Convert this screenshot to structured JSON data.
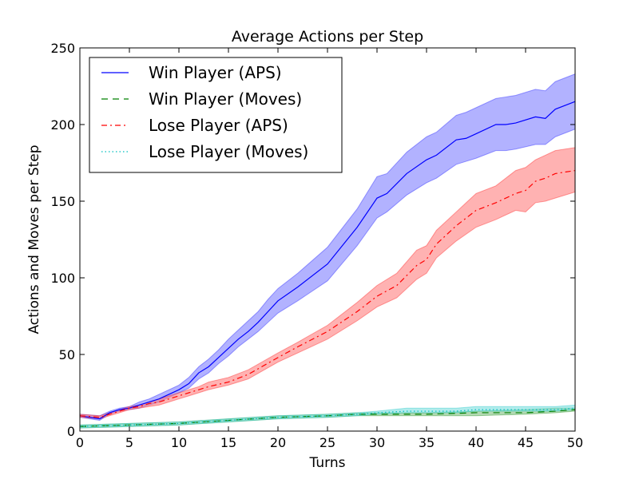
{
  "chart_data": {
    "type": "line",
    "title": "Average Actions per Step",
    "xlabel": "Turns",
    "ylabel": "Actions and Moves per Step",
    "xlim": [
      0,
      50
    ],
    "ylim": [
      0,
      250
    ],
    "xticks": [
      0,
      5,
      10,
      15,
      20,
      25,
      30,
      35,
      40,
      45,
      50
    ],
    "yticks": [
      0,
      50,
      100,
      150,
      200,
      250
    ],
    "grid": false,
    "legend_position": "top-left",
    "series": [
      {
        "name": "Win Player (APS)",
        "style": "solid",
        "color": "#0000ff",
        "band_color": "#7f7fff",
        "x": [
          0,
          2,
          3,
          4,
          5,
          6,
          7,
          8,
          9,
          10,
          11,
          12,
          13,
          14,
          15,
          16,
          17,
          18,
          19,
          20,
          22,
          25,
          28,
          30,
          31,
          33,
          35,
          36,
          38,
          39,
          40,
          42,
          43,
          44,
          46,
          47,
          48,
          50
        ],
        "y": [
          10,
          8,
          12,
          14,
          15,
          17,
          19,
          21,
          24,
          27,
          31,
          38,
          42,
          48,
          54,
          60,
          65,
          71,
          78,
          85,
          94,
          109,
          133,
          152,
          155,
          168,
          177,
          180,
          190,
          191,
          194,
          200,
          200,
          201,
          205,
          204,
          210,
          215
        ],
        "y_lower": [
          9,
          7,
          11,
          13,
          14,
          15,
          17,
          19,
          22,
          25,
          28,
          34,
          38,
          44,
          49,
          55,
          60,
          65,
          71,
          77,
          85,
          98,
          121,
          139,
          143,
          154,
          162,
          165,
          174,
          176,
          178,
          183,
          183,
          184,
          187,
          187,
          192,
          197
        ],
        "y_upper": [
          11,
          10,
          13,
          15,
          16,
          19,
          21,
          24,
          27,
          30,
          35,
          42,
          47,
          53,
          60,
          66,
          72,
          78,
          86,
          93,
          103,
          120,
          145,
          166,
          168,
          182,
          192,
          195,
          206,
          208,
          211,
          217,
          218,
          219,
          223,
          222,
          228,
          233
        ]
      },
      {
        "name": "Win Player (Moves)",
        "style": "dashed",
        "color": "#008000",
        "band_color": "#7fbf7f",
        "x": [
          0,
          5,
          10,
          15,
          20,
          25,
          28,
          30,
          35,
          40,
          45,
          48,
          50
        ],
        "y": [
          3,
          4,
          5,
          7,
          9,
          10,
          11,
          11,
          11,
          12,
          12,
          13,
          14
        ],
        "y_lower": [
          2,
          3,
          4,
          6,
          8,
          9,
          10,
          10,
          10,
          10,
          11,
          12,
          13
        ],
        "y_upper": [
          4,
          5,
          6,
          8,
          10,
          11,
          12,
          12,
          12,
          13,
          14,
          15,
          15
        ]
      },
      {
        "name": "Lose Player (APS)",
        "style": "dashdot",
        "color": "#ff0000",
        "band_color": "#ff7f7f",
        "x": [
          0,
          2,
          3,
          4,
          5,
          6,
          7,
          8,
          9,
          10,
          11,
          12,
          13,
          15,
          17,
          20,
          22,
          25,
          28,
          30,
          32,
          34,
          35,
          36,
          38,
          40,
          42,
          44,
          45,
          46,
          47,
          48,
          50
        ],
        "y": [
          10,
          9,
          11,
          13,
          15,
          16,
          18,
          19,
          21,
          23,
          25,
          27,
          29,
          32,
          37,
          48,
          55,
          65,
          78,
          88,
          95,
          108,
          112,
          122,
          134,
          144,
          149,
          155,
          157,
          163,
          165,
          168,
          170
        ],
        "y_lower": [
          9,
          8,
          10,
          12,
          14,
          15,
          16,
          17,
          19,
          21,
          23,
          25,
          27,
          30,
          34,
          45,
          51,
          60,
          72,
          81,
          87,
          99,
          103,
          113,
          124,
          133,
          138,
          144,
          143,
          149,
          150,
          152,
          156
        ],
        "y_upper": [
          11,
          10,
          12,
          14,
          16,
          17,
          19,
          21,
          23,
          25,
          27,
          29,
          32,
          35,
          40,
          51,
          58,
          69,
          84,
          95,
          103,
          118,
          121,
          131,
          143,
          155,
          160,
          170,
          172,
          177,
          180,
          183,
          185
        ]
      },
      {
        "name": "Lose Player (Moves)",
        "style": "dotted",
        "color": "#00bfbf",
        "band_color": "#7fdfdf",
        "x": [
          0,
          5,
          10,
          15,
          20,
          25,
          28,
          30,
          33,
          35,
          38,
          40,
          45,
          48,
          50
        ],
        "y": [
          3,
          4,
          5,
          7,
          9,
          10,
          11,
          12,
          13,
          13,
          13,
          14,
          14,
          14,
          15
        ],
        "y_lower": [
          2,
          3,
          4,
          6,
          8,
          9,
          10,
          11,
          12,
          12,
          12,
          13,
          13,
          13,
          14
        ],
        "y_upper": [
          4,
          5,
          6,
          8,
          10,
          11,
          12,
          13,
          15,
          15,
          15,
          16,
          16,
          16,
          17
        ]
      }
    ]
  }
}
